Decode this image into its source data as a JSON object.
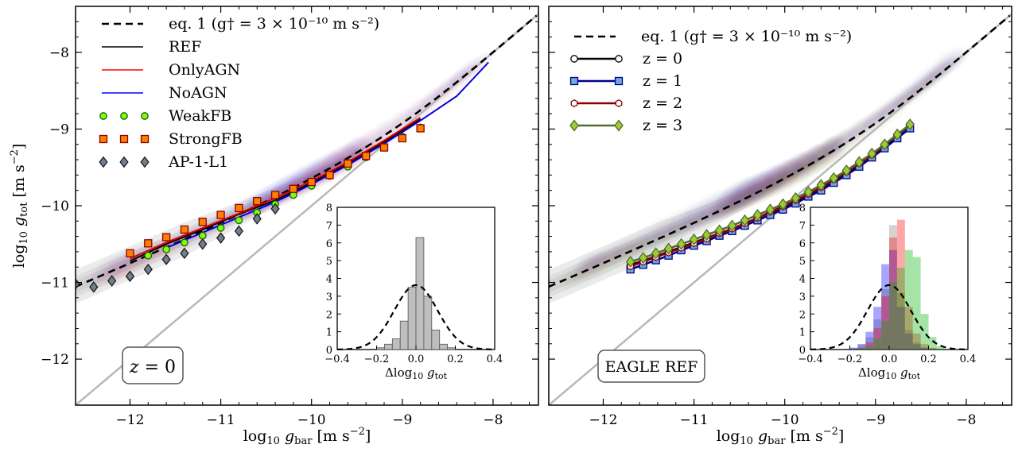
{
  "chart_data": [
    {
      "type": "line",
      "panel": "left",
      "xlabel": "log₁₀ g_bar  [m s⁻²]",
      "ylabel": "log₁₀ g_tot  [m s⁻²]",
      "xlim": [
        -12.6,
        -7.5
      ],
      "ylim": [
        -12.6,
        -7.4
      ],
      "x_ticks": [
        "−12",
        "−11",
        "−10",
        "−9",
        "−8"
      ],
      "y_ticks": [
        "−12",
        "−11",
        "−10",
        "−9",
        "−8"
      ],
      "legend_position": "top-left",
      "annotation": "z = 0",
      "legend": [
        {
          "label": "eq. 1  (g† = 3 × 10⁻¹⁰ m s⁻²)",
          "style": "dashed",
          "color": "#000000"
        },
        {
          "label": "REF",
          "style": "line",
          "color": "#000000"
        },
        {
          "label": "OnlyAGN",
          "style": "line",
          "color": "#ff0000"
        },
        {
          "label": "NoAGN",
          "style": "line",
          "color": "#0000ff"
        },
        {
          "label": "WeakFB",
          "style": "circle",
          "color": "#7fff00"
        },
        {
          "label": "StrongFB",
          "style": "square",
          "color": "#ff7f00"
        },
        {
          "label": "AP-1-L1",
          "style": "diamond",
          "color": "#708090"
        }
      ],
      "series": [
        {
          "name": "REF",
          "x": [
            -12.0,
            -11.6,
            -11.2,
            -10.8,
            -10.4,
            -10.0,
            -9.6,
            -9.2,
            -8.8
          ],
          "y": [
            -10.72,
            -10.5,
            -10.31,
            -10.11,
            -9.93,
            -9.7,
            -9.45,
            -9.17,
            -8.87
          ]
        },
        {
          "name": "OnlyAGN",
          "x": [
            -12.0,
            -11.6,
            -11.2,
            -10.8,
            -10.4,
            -10.0,
            -9.6,
            -9.2,
            -8.8
          ],
          "y": [
            -10.69,
            -10.48,
            -10.29,
            -10.1,
            -9.9,
            -9.68,
            -9.43,
            -9.15,
            -8.85
          ]
        },
        {
          "name": "NoAGN",
          "x": [
            -11.6,
            -11.2,
            -10.8,
            -10.4,
            -10.0,
            -9.6,
            -9.2,
            -8.8,
            -8.4,
            -8.05
          ],
          "y": [
            -10.55,
            -10.35,
            -10.15,
            -9.95,
            -9.72,
            -9.47,
            -9.19,
            -8.89,
            -8.57,
            -8.13
          ]
        },
        {
          "name": "WeakFB",
          "x": [
            -11.8,
            -11.6,
            -11.4,
            -11.2,
            -11.0,
            -10.8,
            -10.6,
            -10.4,
            -10.2,
            -10.0,
            -9.8,
            -9.6,
            -9.4,
            -9.2,
            -9.0,
            -8.8
          ],
          "y": [
            -10.65,
            -10.57,
            -10.48,
            -10.39,
            -10.29,
            -10.19,
            -10.09,
            -9.98,
            -9.86,
            -9.74,
            -9.61,
            -9.49,
            -9.37,
            -9.23,
            -9.1,
            -8.98
          ]
        },
        {
          "name": "StrongFB",
          "x": [
            -12.0,
            -11.8,
            -11.6,
            -11.4,
            -11.2,
            -11.0,
            -10.8,
            -10.6,
            -10.4,
            -10.2,
            -10.0,
            -9.8,
            -9.6,
            -9.4,
            -9.2,
            -9.0,
            -8.8
          ],
          "y": [
            -10.62,
            -10.49,
            -10.41,
            -10.31,
            -10.21,
            -10.12,
            -10.03,
            -9.94,
            -9.86,
            -9.78,
            -9.69,
            -9.6,
            -9.45,
            -9.35,
            -9.24,
            -9.12,
            -8.99
          ]
        },
        {
          "name": "AP-1-L1",
          "x": [
            -12.6,
            -12.4,
            -12.2,
            -12.0,
            -11.8,
            -11.6,
            -11.4,
            -11.2,
            -11.0,
            -10.8,
            -10.6,
            -10.4
          ],
          "y": [
            -11.02,
            -11.06,
            -10.98,
            -10.92,
            -10.83,
            -10.7,
            -10.62,
            -10.5,
            -10.42,
            -10.33,
            -10.17,
            -10.04
          ]
        }
      ],
      "inset": {
        "type": "bar",
        "xlabel": "Δlog₁₀ g_tot",
        "xlim": [
          -0.4,
          0.4
        ],
        "ylim": [
          0,
          8
        ],
        "x_ticks": [
          "−0.4",
          "−0.2",
          "0.0",
          "0.2",
          "0.4"
        ],
        "y_ticks": [
          "0",
          "1",
          "2",
          "3",
          "4",
          "5",
          "6",
          "7",
          "8"
        ],
        "bin_width": 0.04,
        "bin_centers": [
          -0.18,
          -0.14,
          -0.1,
          -0.06,
          -0.02,
          0.02,
          0.06,
          0.1,
          0.14,
          0.18
        ],
        "values": [
          0.1,
          0.3,
          0.6,
          1.6,
          3.5,
          6.3,
          3.0,
          1.1,
          0.3,
          0.1
        ],
        "color": "#bebebe",
        "gaussian": {
          "mean": 0.0,
          "sigma": 0.11
        }
      }
    },
    {
      "type": "line",
      "panel": "right",
      "xlabel": "log₁₀ g_bar  [m s⁻²]",
      "xlim": [
        -12.6,
        -7.5
      ],
      "ylim": [
        -12.6,
        -7.4
      ],
      "x_ticks": [
        "−12",
        "−11",
        "−10",
        "−9",
        "−8"
      ],
      "legend_position": "top-left",
      "annotation": "EAGLE REF",
      "legend": [
        {
          "label": "eq. 1  (g† = 3 × 10⁻¹⁰ m s⁻²)",
          "style": "dashed",
          "color": "#000000"
        },
        {
          "label": "z = 0",
          "style": "line-circle",
          "color": "#000000"
        },
        {
          "label": "z = 1",
          "style": "line-square",
          "color": "#00008b"
        },
        {
          "label": "z = 2",
          "style": "line-hexagon",
          "color": "#8b0000"
        },
        {
          "label": "z = 3",
          "style": "line-diamond",
          "color": "#556b2f"
        }
      ],
      "x_grid": [
        -11.7,
        -11.56,
        -11.42,
        -11.28,
        -11.14,
        -11.0,
        -10.86,
        -10.72,
        -10.58,
        -10.44,
        -10.3,
        -10.16,
        -10.02,
        -9.88,
        -9.74,
        -9.6,
        -9.46,
        -9.32,
        -9.18,
        -9.04,
        -8.9,
        -8.76,
        -8.62
      ],
      "series": [
        {
          "name": "z = 0",
          "y": [
            -10.77,
            -10.72,
            -10.66,
            -10.6,
            -10.54,
            -10.48,
            -10.42,
            -10.36,
            -10.3,
            -10.23,
            -10.16,
            -10.09,
            -10.02,
            -9.94,
            -9.86,
            -9.77,
            -9.67,
            -9.57,
            -9.47,
            -9.35,
            -9.22,
            -9.09,
            -8.95
          ]
        },
        {
          "name": "z = 1",
          "y": [
            -10.83,
            -10.77,
            -10.71,
            -10.65,
            -10.58,
            -10.52,
            -10.46,
            -10.39,
            -10.33,
            -10.26,
            -10.19,
            -10.12,
            -10.05,
            -9.97,
            -9.88,
            -9.8,
            -9.7,
            -9.6,
            -9.49,
            -9.37,
            -9.25,
            -9.12,
            -8.99
          ]
        },
        {
          "name": "z = 2",
          "y": [
            -10.79,
            -10.73,
            -10.67,
            -10.61,
            -10.55,
            -10.49,
            -10.43,
            -10.36,
            -10.3,
            -10.23,
            -10.16,
            -10.08,
            -10.01,
            -9.93,
            -9.85,
            -9.76,
            -9.66,
            -9.56,
            -9.45,
            -9.34,
            -9.21,
            -9.08,
            -8.94
          ]
        },
        {
          "name": "z = 3",
          "y": [
            -10.73,
            -10.68,
            -10.62,
            -10.56,
            -10.5,
            -10.44,
            -10.38,
            -10.32,
            -10.26,
            -10.19,
            -10.12,
            -10.05,
            -9.98,
            -9.9,
            -9.82,
            -9.73,
            -9.64,
            -9.54,
            -9.43,
            -9.32,
            -9.2,
            -9.07,
            -8.94
          ]
        }
      ],
      "inset": {
        "type": "bar",
        "xlabel": "Δlog₁₀ g_tot",
        "xlim": [
          -0.4,
          0.4
        ],
        "ylim": [
          0,
          8
        ],
        "x_ticks": [
          "−0.4",
          "−0.2",
          "0.0",
          "0.2",
          "0.4"
        ],
        "y_ticks": [
          "0",
          "1",
          "2",
          "3",
          "4",
          "5",
          "6",
          "7",
          "8"
        ],
        "bin_width": 0.04,
        "bin_centers": [
          -0.18,
          -0.14,
          -0.1,
          -0.06,
          -0.02,
          0.02,
          0.06,
          0.1,
          0.14,
          0.18,
          0.22,
          0.26
        ],
        "series": [
          {
            "name": "z = 0",
            "color": "#808080",
            "values": [
              0.1,
              0.3,
              0.7,
              1.7,
              3.4,
              7.0,
              3.2,
              1.1,
              0.4,
              0.1,
              0.0,
              0.0
            ]
          },
          {
            "name": "z = 1",
            "color": "#0000ff",
            "values": [
              0.1,
              0.3,
              1.0,
              2.4,
              4.8,
              5.6,
              2.4,
              0.9,
              0.3,
              0.1,
              0.0,
              0.0
            ]
          },
          {
            "name": "z = 2",
            "color": "#ff0000",
            "values": [
              0.0,
              0.1,
              0.4,
              1.2,
              3.0,
              6.3,
              7.3,
              2.4,
              0.9,
              0.3,
              0.1,
              0.0
            ]
          },
          {
            "name": "z = 3",
            "color": "#00b000",
            "values": [
              0.0,
              0.1,
              0.2,
              0.6,
              1.6,
              3.8,
              4.6,
              5.6,
              5.2,
              2.0,
              0.7,
              0.2
            ]
          }
        ],
        "gaussian": {
          "mean": 0.0,
          "sigma": 0.11
        }
      }
    }
  ]
}
